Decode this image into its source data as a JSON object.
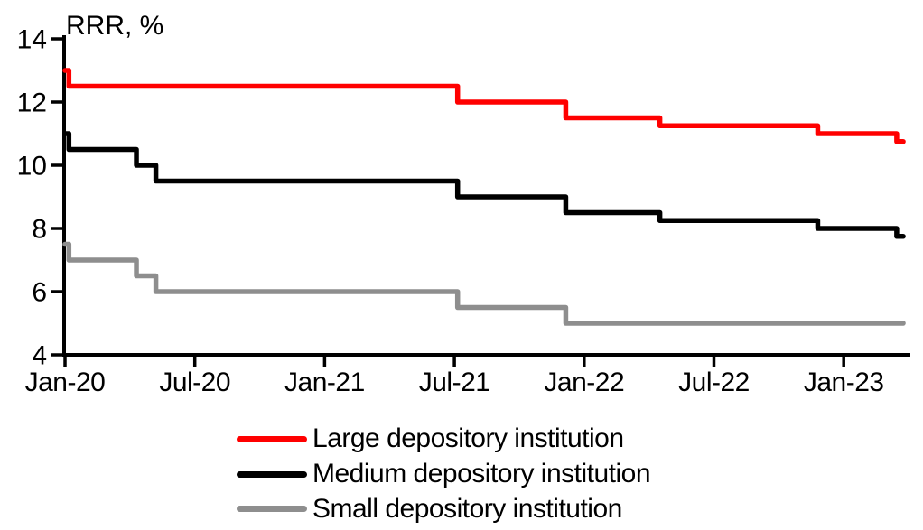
{
  "page": {
    "background": "#FFFFFF"
  },
  "chart_data": {
    "type": "line",
    "style": "step",
    "title": "RRR, %",
    "xlabel": "",
    "ylabel": "RRR, %",
    "ylim": [
      4,
      14
    ],
    "grid": false,
    "legend_position": "bottom",
    "axis_color": "#000000",
    "text_color": "#000000",
    "x_unit": "months since Jan-2020",
    "x_end_m": 38.75,
    "y_ticks": [
      "14",
      "12",
      "10",
      "8",
      "6",
      "4"
    ],
    "y_tick_values": [
      14,
      12,
      10,
      8,
      6,
      4
    ],
    "x_ticks": [
      {
        "label": "Jan-20",
        "m": 0
      },
      {
        "label": "Jul-20",
        "m": 6
      },
      {
        "label": "Jan-21",
        "m": 12
      },
      {
        "label": "Jul-21",
        "m": 18
      },
      {
        "label": "Jan-22",
        "m": 24
      },
      {
        "label": "Jul-22",
        "m": 30
      },
      {
        "label": "Jan-23",
        "m": 36
      }
    ],
    "series": [
      {
        "name": "Large depository institution",
        "color": "#FF0000",
        "steps": [
          {
            "date": "Jan-20",
            "m": 0,
            "value": 13
          },
          {
            "date": "Jan-20",
            "m": 0.18,
            "value": 12.5
          },
          {
            "date": "Jul-21",
            "m": 18.15,
            "value": 12
          },
          {
            "date": "Dec-21",
            "m": 23.15,
            "value": 11.5
          },
          {
            "date": "Apr-22",
            "m": 27.5,
            "value": 11.25
          },
          {
            "date": "Dec-22",
            "m": 34.8,
            "value": 11
          },
          {
            "date": "Mar-23",
            "m": 38.45,
            "value": 10.75
          }
        ]
      },
      {
        "name": "Medium depository institution",
        "color": "#000000",
        "steps": [
          {
            "date": "Jan-20",
            "m": 0,
            "value": 11
          },
          {
            "date": "Jan-20",
            "m": 0.18,
            "value": 10.5
          },
          {
            "date": "Apr-20",
            "m": 3.3,
            "value": 10
          },
          {
            "date": "May-20",
            "m": 4.2,
            "value": 9.5
          },
          {
            "date": "Jul-21",
            "m": 18.15,
            "value": 9
          },
          {
            "date": "Dec-21",
            "m": 23.15,
            "value": 8.5
          },
          {
            "date": "Apr-22",
            "m": 27.5,
            "value": 8.25
          },
          {
            "date": "Dec-22",
            "m": 34.8,
            "value": 8
          },
          {
            "date": "Mar-23",
            "m": 38.45,
            "value": 7.75
          }
        ]
      },
      {
        "name": "Small depository institution",
        "color": "#8E8E8E",
        "steps": [
          {
            "date": "Jan-20",
            "m": 0,
            "value": 7.5
          },
          {
            "date": "Jan-20",
            "m": 0.18,
            "value": 7
          },
          {
            "date": "Apr-20",
            "m": 3.3,
            "value": 6.5
          },
          {
            "date": "May-20",
            "m": 4.2,
            "value": 6
          },
          {
            "date": "Jul-21",
            "m": 18.15,
            "value": 5.5
          },
          {
            "date": "Dec-21",
            "m": 23.15,
            "value": 5
          }
        ]
      }
    ]
  }
}
